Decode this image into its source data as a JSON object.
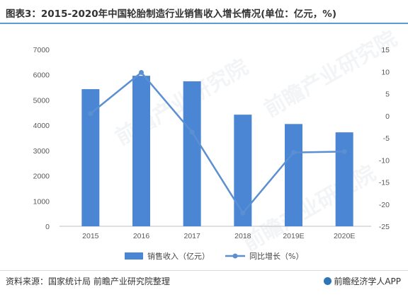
{
  "title": "图表3：2015-2020年中国轮胎制造行业销售收入增长情况(单位：亿元，%)",
  "footer": {
    "source": "资料来源：国家统计局 前瞻产业研究院整理",
    "brand": "前瞻经济学人APP"
  },
  "watermark": "前瞻产业研究院",
  "colors": {
    "bar": "#4a86d4",
    "line": "#5b8fd1",
    "accent": "#5b9bd5"
  },
  "chart_data": {
    "type": "bar",
    "categories": [
      "2015",
      "2016",
      "2017",
      "2018",
      "2019E",
      "2020E"
    ],
    "series": [
      {
        "name": "销售收入（亿元）",
        "type": "bar",
        "axis": "left",
        "values": [
          5430,
          5960,
          5740,
          4420,
          4050,
          3720
        ]
      },
      {
        "name": "同比增长（%）",
        "type": "line",
        "axis": "right",
        "values": [
          0.5,
          9.8,
          -3.7,
          -22.0,
          -8.3,
          -8.1
        ]
      }
    ],
    "left_axis": {
      "min": 0,
      "max": 7000,
      "step": 1000,
      "ticks": [
        "0",
        "1000",
        "2000",
        "3000",
        "4000",
        "5000",
        "6000",
        "7000"
      ]
    },
    "right_axis": {
      "min": -25,
      "max": 15,
      "step": 5,
      "ticks": [
        "-25",
        "-20",
        "-15",
        "-10",
        "-5",
        "0",
        "5",
        "10",
        "15"
      ]
    },
    "legend_position": "bottom",
    "grid": false
  }
}
